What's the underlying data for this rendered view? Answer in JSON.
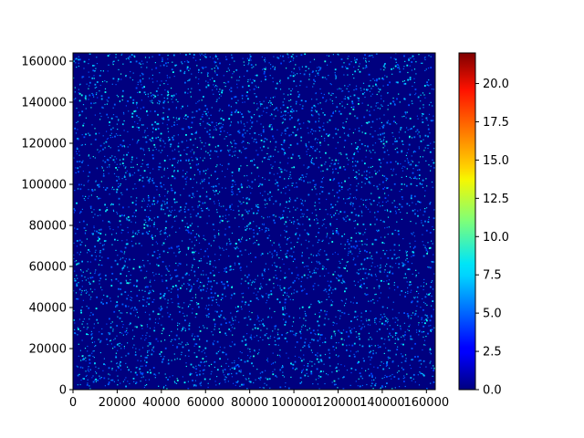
{
  "chart_data": {
    "type": "heatmap",
    "title": "",
    "xlabel": "",
    "ylabel": "",
    "xlim": [
      0,
      164000
    ],
    "ylim": [
      0,
      164000
    ],
    "x_ticks": [
      0,
      20000,
      40000,
      60000,
      80000,
      100000,
      120000,
      140000,
      160000
    ],
    "y_ticks": [
      0,
      20000,
      40000,
      60000,
      80000,
      100000,
      120000,
      140000,
      160000
    ],
    "x_tick_labels": [
      "0",
      "20000",
      "40000",
      "60000",
      "80000",
      "100000",
      "120000",
      "140000",
      "160000"
    ],
    "y_tick_labels": [
      "0",
      "20000",
      "40000",
      "60000",
      "80000",
      "100000",
      "120000",
      "140000",
      "160000"
    ],
    "colormap": "jet",
    "colorbar": {
      "range": [
        0,
        22
      ],
      "ticks": [
        0,
        2.5,
        5,
        7.5,
        10,
        12.5,
        15,
        17.5,
        20
      ],
      "tick_labels": [
        "0.0",
        "2.5",
        "5.0",
        "7.5",
        "10.0",
        "12.5",
        "15.0",
        "17.5",
        "20.0"
      ]
    },
    "distribution": {
      "background_value": 0,
      "typical_speckle_values": [
        4,
        6,
        8
      ],
      "speckle_density": "dense, uniform across the full domain"
    },
    "grid": false
  }
}
